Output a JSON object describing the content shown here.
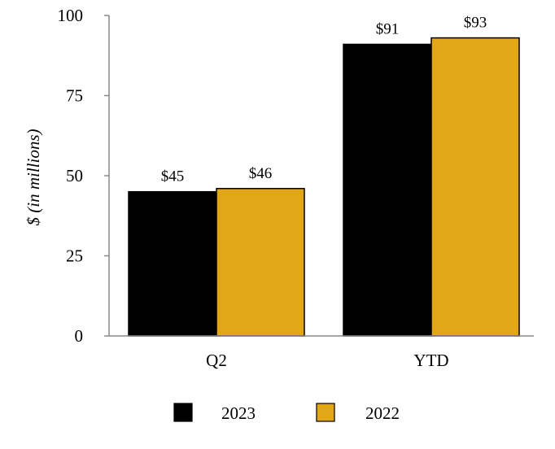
{
  "chart_data": {
    "type": "bar",
    "title": "",
    "xlabel": "",
    "ylabel": "$ (in millions)",
    "categories": [
      "Q2",
      "YTD"
    ],
    "ylim": [
      0,
      100
    ],
    "yticks": [
      0,
      25,
      50,
      75,
      100
    ],
    "grid": false,
    "legend_position": "bottom",
    "series": [
      {
        "name": "2023",
        "color": "#000000",
        "values": [
          45,
          91
        ],
        "labels": [
          "$45",
          "$91"
        ]
      },
      {
        "name": "2022",
        "color": "#E2A716",
        "values": [
          46,
          93
        ],
        "labels": [
          "$46",
          "$93"
        ]
      }
    ]
  }
}
